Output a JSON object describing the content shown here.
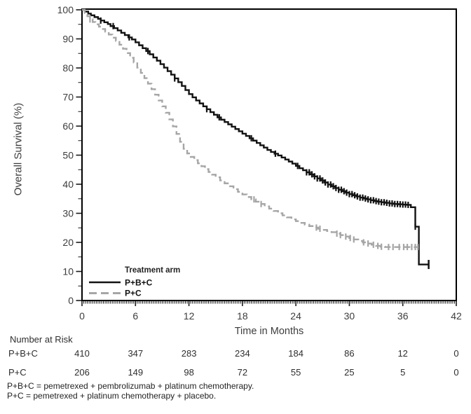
{
  "chart_data": {
    "type": "line",
    "subtype": "kaplan-meier-step",
    "title": "",
    "xlabel": "Time in Months",
    "ylabel": "Overall Survival (%)",
    "xlim": [
      0,
      42
    ],
    "ylim": [
      0,
      100
    ],
    "x_ticks": [
      0,
      6,
      12,
      18,
      24,
      30,
      36,
      42
    ],
    "x_minor_tick_step": 0.2,
    "y_ticks_major": [
      0,
      10,
      20,
      30,
      40,
      50,
      60,
      70,
      80,
      90,
      100
    ],
    "y_tick_minor_step": 5,
    "grid": false,
    "legend": {
      "title": "Treatment arm",
      "position": "inside-bottom-left"
    },
    "series": [
      {
        "name": "P+B+C",
        "style": "solid",
        "color": "#121212",
        "points": [
          [
            0,
            100
          ],
          [
            0.3,
            99.4
          ],
          [
            0.7,
            98.7
          ],
          [
            1.0,
            98.1
          ],
          [
            1.4,
            97.5
          ],
          [
            1.8,
            96.9
          ],
          [
            2.1,
            96.3
          ],
          [
            2.5,
            95.7
          ],
          [
            2.9,
            95.1
          ],
          [
            3.2,
            94.4
          ],
          [
            3.6,
            93.7
          ],
          [
            4.0,
            92.9
          ],
          [
            4.4,
            92.1
          ],
          [
            4.8,
            91.3
          ],
          [
            5.2,
            90.5
          ],
          [
            5.6,
            89.8
          ],
          [
            6.0,
            88.8
          ],
          [
            6.4,
            87.8
          ],
          [
            6.8,
            86.8
          ],
          [
            7.2,
            85.8
          ],
          [
            7.6,
            84.7
          ],
          [
            8.0,
            83.6
          ],
          [
            8.4,
            82.5
          ],
          [
            8.8,
            81.3
          ],
          [
            9.2,
            80.1
          ],
          [
            9.6,
            78.9
          ],
          [
            10.0,
            77.7
          ],
          [
            10.4,
            76.4
          ],
          [
            10.8,
            75.1
          ],
          [
            11.2,
            73.8
          ],
          [
            11.6,
            72.4
          ],
          [
            12.0,
            71.0
          ],
          [
            12.4,
            69.9
          ],
          [
            12.8,
            68.8
          ],
          [
            13.2,
            67.8
          ],
          [
            13.6,
            66.8
          ],
          [
            14.0,
            65.8
          ],
          [
            14.4,
            64.8
          ],
          [
            14.8,
            63.9
          ],
          [
            15.2,
            63.0
          ],
          [
            15.6,
            62.2
          ],
          [
            16.0,
            61.4
          ],
          [
            16.4,
            60.6
          ],
          [
            16.8,
            59.8
          ],
          [
            17.2,
            59.0
          ],
          [
            17.6,
            58.2
          ],
          [
            18.0,
            57.4
          ],
          [
            18.4,
            56.6
          ],
          [
            18.8,
            55.8
          ],
          [
            19.2,
            55.0
          ],
          [
            19.6,
            54.2
          ],
          [
            20.0,
            53.4
          ],
          [
            20.4,
            52.6
          ],
          [
            20.8,
            51.8
          ],
          [
            21.2,
            51.1
          ],
          [
            21.6,
            50.5
          ],
          [
            22.0,
            49.9
          ],
          [
            22.4,
            49.2
          ],
          [
            22.8,
            48.5
          ],
          [
            23.2,
            47.8
          ],
          [
            23.6,
            47.1
          ],
          [
            24.0,
            46.3
          ],
          [
            24.4,
            45.5
          ],
          [
            24.8,
            44.8
          ],
          [
            25.2,
            44.1
          ],
          [
            25.6,
            43.4
          ],
          [
            26.0,
            42.7
          ],
          [
            26.4,
            42.0
          ],
          [
            26.8,
            41.3
          ],
          [
            27.2,
            40.6
          ],
          [
            27.6,
            39.9
          ],
          [
            28.0,
            39.3
          ],
          [
            28.4,
            38.7
          ],
          [
            28.8,
            38.1
          ],
          [
            29.2,
            37.6
          ],
          [
            29.6,
            37.1
          ],
          [
            30.0,
            36.6
          ],
          [
            30.4,
            36.2
          ],
          [
            30.8,
            35.8
          ],
          [
            31.2,
            35.4
          ],
          [
            31.6,
            35.1
          ],
          [
            32.0,
            34.8
          ],
          [
            32.4,
            34.5
          ],
          [
            32.8,
            34.2
          ],
          [
            33.2,
            34.0
          ],
          [
            33.6,
            33.8
          ],
          [
            34.0,
            33.6
          ],
          [
            34.5,
            33.4
          ],
          [
            35.0,
            33.2
          ],
          [
            35.5,
            33.1
          ],
          [
            36.0,
            33.0
          ],
          [
            36.5,
            32.9
          ],
          [
            36.9,
            32.1
          ],
          [
            37.4,
            25.4
          ],
          [
            37.8,
            12.4
          ],
          [
            38.9,
            12.4
          ]
        ],
        "censor_months": [
          2.1,
          3.5,
          5.3,
          7.4,
          10.4,
          14.0,
          15.4,
          19.0,
          21.7,
          24.2,
          25.2,
          25.5,
          25.8,
          26.1,
          26.4,
          26.7,
          27.0,
          27.3,
          27.6,
          27.9,
          28.2,
          28.5,
          28.8,
          29.1,
          29.4,
          29.7,
          30.0,
          30.3,
          30.6,
          30.9,
          31.2,
          31.5,
          31.8,
          32.1,
          32.4,
          32.7,
          33.0,
          33.3,
          33.6,
          33.9,
          34.2,
          34.5,
          34.8,
          35.1,
          35.4,
          35.7,
          36.0,
          36.3,
          36.6,
          37.4
        ],
        "end_tick_month": 38.9
      },
      {
        "name": "P+C",
        "style": "dashed",
        "color": "#a6a6a6",
        "points": [
          [
            0,
            100
          ],
          [
            0.3,
            98.9
          ],
          [
            0.6,
            97.8
          ],
          [
            0.9,
            96.7
          ],
          [
            1.2,
            95.8
          ],
          [
            1.5,
            95.0
          ],
          [
            1.9,
            94.2
          ],
          [
            2.2,
            93.4
          ],
          [
            2.6,
            92.5
          ],
          [
            3.0,
            91.5
          ],
          [
            3.4,
            90.4
          ],
          [
            3.8,
            89.3
          ],
          [
            4.2,
            88.0
          ],
          [
            4.6,
            86.6
          ],
          [
            5.0,
            85.1
          ],
          [
            5.4,
            83.5
          ],
          [
            5.8,
            81.9
          ],
          [
            6.2,
            80.1
          ],
          [
            6.6,
            78.3
          ],
          [
            7.0,
            76.5
          ],
          [
            7.4,
            74.6
          ],
          [
            7.8,
            72.7
          ],
          [
            8.2,
            70.8
          ],
          [
            8.6,
            68.8
          ],
          [
            9.0,
            66.8
          ],
          [
            9.4,
            64.6
          ],
          [
            9.8,
            62.3
          ],
          [
            10.2,
            59.9
          ],
          [
            10.6,
            57.3
          ],
          [
            11.0,
            54.6
          ],
          [
            11.4,
            52.2
          ],
          [
            11.8,
            50.6
          ],
          [
            12.2,
            49.4
          ],
          [
            12.6,
            48.3
          ],
          [
            13.0,
            47.2
          ],
          [
            13.4,
            46.2
          ],
          [
            13.8,
            45.2
          ],
          [
            14.2,
            44.2
          ],
          [
            14.6,
            43.3
          ],
          [
            15.0,
            42.4
          ],
          [
            15.5,
            41.3
          ],
          [
            16.0,
            40.3
          ],
          [
            16.5,
            39.3
          ],
          [
            17.0,
            38.3
          ],
          [
            17.5,
            37.4
          ],
          [
            18.0,
            36.5
          ],
          [
            18.5,
            35.6
          ],
          [
            19.0,
            34.8
          ],
          [
            19.5,
            34.0
          ],
          [
            20.0,
            33.2
          ],
          [
            20.5,
            32.4
          ],
          [
            21.0,
            31.6
          ],
          [
            21.5,
            30.8
          ],
          [
            22.0,
            30.0
          ],
          [
            22.5,
            29.3
          ],
          [
            23.0,
            28.6
          ],
          [
            23.5,
            27.9
          ],
          [
            24.0,
            27.3
          ],
          [
            24.5,
            26.7
          ],
          [
            25.0,
            26.1
          ],
          [
            25.5,
            25.6
          ],
          [
            26.0,
            25.1
          ],
          [
            26.5,
            24.7
          ],
          [
            27.0,
            24.3
          ],
          [
            27.5,
            23.9
          ],
          [
            28.0,
            23.5
          ],
          [
            28.5,
            23.0
          ],
          [
            29.0,
            22.5
          ],
          [
            29.5,
            22.0
          ],
          [
            30.0,
            21.5
          ],
          [
            30.5,
            21.0
          ],
          [
            31.0,
            20.5
          ],
          [
            31.5,
            20.0
          ],
          [
            32.0,
            19.6
          ],
          [
            32.5,
            19.2
          ],
          [
            33.0,
            18.8
          ],
          [
            33.5,
            18.5
          ],
          [
            34.0,
            18.4
          ],
          [
            37.8,
            18.4
          ]
        ],
        "censor_months": [
          0.9,
          19.3,
          20.1,
          26.3,
          26.7,
          28.6,
          29.0,
          29.6,
          30.1,
          30.5,
          31.6,
          32.1,
          32.7,
          33.2,
          33.6,
          34.4,
          34.9,
          35.6,
          36.1,
          36.5,
          37.0,
          37.4,
          37.7
        ],
        "end_tick_month": null
      }
    ]
  },
  "risk_table": {
    "title": "Number at Risk",
    "time_points": [
      0,
      6,
      12,
      18,
      24,
      30,
      36,
      42
    ],
    "rows": [
      {
        "label": "P+B+C",
        "values": [
          "410",
          "347",
          "283",
          "234",
          "184",
          "86",
          "12",
          "0"
        ]
      },
      {
        "label": "P+C",
        "values": [
          "206",
          "149",
          "98",
          "72",
          "55",
          "25",
          "5",
          "0"
        ]
      }
    ]
  },
  "footnotes": [
    "P+B+C = pemetrexed + pembrolizumab + platinum chemotherapy.",
    "P+C = pemetrexed + platinum chemotherapy + placebo."
  ]
}
